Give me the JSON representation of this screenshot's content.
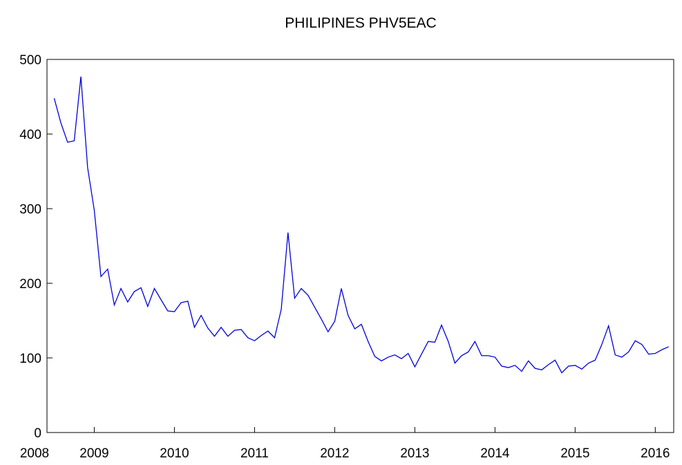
{
  "chart_data": {
    "type": "line",
    "title": "PHILIPINES PHV5EAC",
    "x": [
      2008.5,
      2008.583,
      2008.667,
      2008.75,
      2008.833,
      2008.917,
      2009.0,
      2009.083,
      2009.167,
      2009.25,
      2009.333,
      2009.417,
      2009.5,
      2009.583,
      2009.667,
      2009.75,
      2009.833,
      2009.917,
      2010.0,
      2010.083,
      2010.167,
      2010.25,
      2010.333,
      2010.417,
      2010.5,
      2010.583,
      2010.667,
      2010.75,
      2010.833,
      2010.917,
      2011.0,
      2011.083,
      2011.167,
      2011.25,
      2011.333,
      2011.417,
      2011.5,
      2011.583,
      2011.667,
      2011.75,
      2011.833,
      2011.917,
      2012.0,
      2012.083,
      2012.167,
      2012.25,
      2012.333,
      2012.417,
      2012.5,
      2012.583,
      2012.667,
      2012.75,
      2012.833,
      2012.917,
      2013.0,
      2013.083,
      2013.167,
      2013.25,
      2013.333,
      2013.417,
      2013.5,
      2013.583,
      2013.667,
      2013.75,
      2013.833,
      2013.917,
      2014.0,
      2014.083,
      2014.167,
      2014.25,
      2014.333,
      2014.417,
      2014.5,
      2014.583,
      2014.667,
      2014.75,
      2014.833,
      2014.917,
      2015.0,
      2015.083,
      2015.167,
      2015.25,
      2015.333,
      2015.417,
      2015.5,
      2015.583,
      2015.667,
      2015.75,
      2015.833,
      2015.917,
      2016.0,
      2016.083,
      2016.167
    ],
    "series": [
      {
        "name": "PHV5EAC",
        "color": "#0000dd",
        "values": [
          448,
          415,
          389,
          391,
          477,
          355,
          298,
          209,
          219,
          171,
          193,
          175,
          189,
          194,
          169,
          193,
          178,
          163,
          162,
          174,
          176,
          141,
          157,
          140,
          129,
          141,
          129,
          137,
          138,
          127,
          123,
          130,
          136,
          127,
          165,
          268,
          180,
          193,
          184,
          168,
          152,
          135,
          149,
          193,
          157,
          139,
          145,
          122,
          102,
          96,
          101,
          104,
          99,
          106,
          88,
          105,
          122,
          121,
          144,
          122,
          93,
          103,
          108,
          122,
          103,
          103,
          101,
          89,
          87,
          90,
          82,
          96,
          86,
          84,
          91,
          97,
          80,
          89,
          90,
          85,
          93,
          97,
          118,
          143,
          104,
          101,
          108,
          123,
          118,
          105,
          106,
          111,
          115
        ]
      }
    ],
    "xlim": [
      2008.41,
      2016.23
    ],
    "xticks": [
      2008,
      2009,
      2010,
      2011,
      2012,
      2013,
      2014,
      2015,
      2016
    ],
    "ylim": [
      0,
      500
    ],
    "yticks": [
      0,
      100,
      200,
      300,
      400,
      500
    ],
    "grid": false
  }
}
